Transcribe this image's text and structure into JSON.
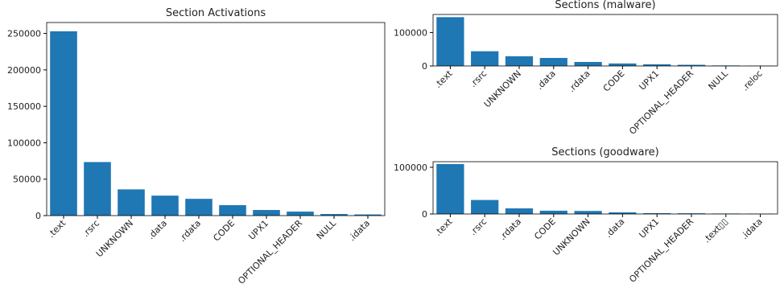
{
  "chart_data": [
    {
      "type": "bar",
      "title": "Section Activations",
      "color": "#1f77b4",
      "categories": [
        ".text",
        ".rsrc",
        "UNKNOWN",
        ".data",
        ".rdata",
        "CODE",
        "UPX1",
        "OPTIONAL_HEADER",
        "NULL",
        ".idata"
      ],
      "values": [
        253000,
        73500,
        36000,
        27400,
        23000,
        14300,
        7700,
        5500,
        2200,
        1600
      ],
      "ylim": [
        0,
        265000
      ],
      "yticks": [
        0,
        50000,
        100000,
        150000,
        200000,
        250000
      ]
    },
    {
      "type": "bar",
      "title": "Sections (malware)",
      "color": "#1f77b4",
      "categories": [
        ".text",
        ".rsrc",
        "UNKNOWN",
        ".data",
        ".rdata",
        "CODE",
        "UPX1",
        "OPTIONAL_HEADER",
        "NULL",
        ".reloc"
      ],
      "values": [
        146000,
        44000,
        29000,
        24000,
        12000,
        7500,
        5000,
        3500,
        1500,
        1000
      ],
      "ylim": [
        0,
        154000
      ],
      "yticks": [
        0,
        100000
      ]
    },
    {
      "type": "bar",
      "title": "Sections (goodware)",
      "color": "#1f77b4",
      "categories": [
        ".text",
        ".rsrc",
        ".rdata",
        "CODE",
        "UNKNOWN",
        ".data",
        "UPX1",
        "OPTIONAL_HEADER",
        ".text▯▯",
        ".idata"
      ],
      "values": [
        107000,
        30000,
        12000,
        7000,
        6500,
        3500,
        1800,
        1500,
        1000,
        700
      ],
      "ylim": [
        0,
        112000
      ],
      "yticks": [
        0,
        100000
      ]
    }
  ]
}
